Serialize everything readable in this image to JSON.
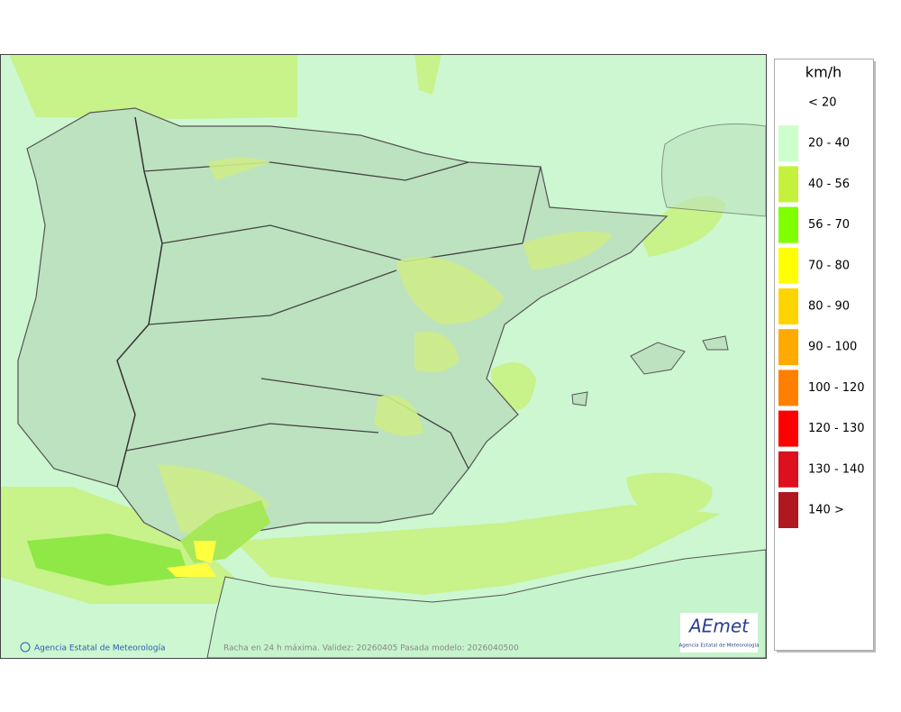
{
  "map": {
    "caption": "Racha en 24 h máxima. Validez: 20260405 Pasada modelo: 2026040500",
    "credit": "Agencia Estatal de Meteorología",
    "logo": {
      "name": "AEmet",
      "subtitle": "Agencia Estatal de Meteorología"
    }
  },
  "legend": {
    "title": "km/h",
    "items": [
      {
        "label": "< 20",
        "color": null
      },
      {
        "label": "20 - 40",
        "color": "#ccffcc"
      },
      {
        "label": "40 - 56",
        "color": "#c4f23c"
      },
      {
        "label": "56 - 70",
        "color": "#7fff00"
      },
      {
        "label": "70 - 80",
        "color": "#ffff00"
      },
      {
        "label": "80 - 90",
        "color": "#ffd400"
      },
      {
        "label": "90 - 100",
        "color": "#ffaa00"
      },
      {
        "label": "100 - 120",
        "color": "#ff8000"
      },
      {
        "label": "120 - 130",
        "color": "#ff0000"
      },
      {
        "label": "130 - 140",
        "color": "#dd1020"
      },
      {
        "label": "140 >",
        "color": "#b01820"
      }
    ]
  }
}
